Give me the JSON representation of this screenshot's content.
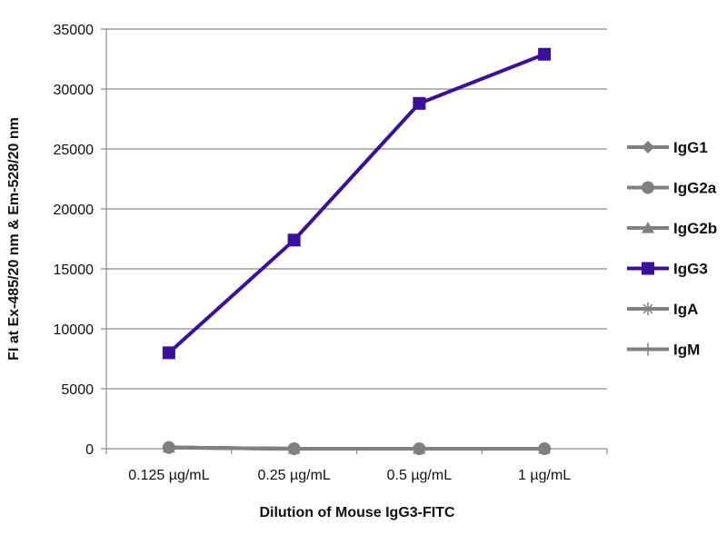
{
  "chart_data": {
    "type": "line",
    "title": "",
    "xlabel": "Dilution of Mouse IgG3-FITC",
    "ylabel": "FI at Ex-485/20 nm & Em-528/20 nm",
    "categories": [
      "0.125 µg/mL",
      "0.25 µg/mL",
      "0.5 µg/mL",
      "1 µg/mL"
    ],
    "ylim": [
      0,
      35000
    ],
    "yticks": [
      0,
      5000,
      10000,
      15000,
      20000,
      25000,
      30000,
      35000
    ],
    "grid": "horizontal",
    "legend_position": "right",
    "series": [
      {
        "name": "IgG1",
        "marker": "diamond",
        "color": "#808080",
        "values": [
          100,
          0,
          0,
          0
        ]
      },
      {
        "name": "IgG2a",
        "marker": "circle",
        "color": "#808080",
        "values": [
          100,
          0,
          0,
          0
        ]
      },
      {
        "name": "IgG2b",
        "marker": "triangle",
        "color": "#808080",
        "values": [
          100,
          0,
          0,
          0
        ]
      },
      {
        "name": "IgG3",
        "marker": "square",
        "color": "#3a0f9e",
        "values": [
          8000,
          17400,
          28800,
          32900
        ]
      },
      {
        "name": "IgA",
        "marker": "star",
        "color": "#808080",
        "values": [
          100,
          0,
          0,
          0
        ]
      },
      {
        "name": "IgM",
        "marker": "plus",
        "color": "#808080",
        "values": [
          100,
          0,
          0,
          0
        ]
      }
    ]
  }
}
